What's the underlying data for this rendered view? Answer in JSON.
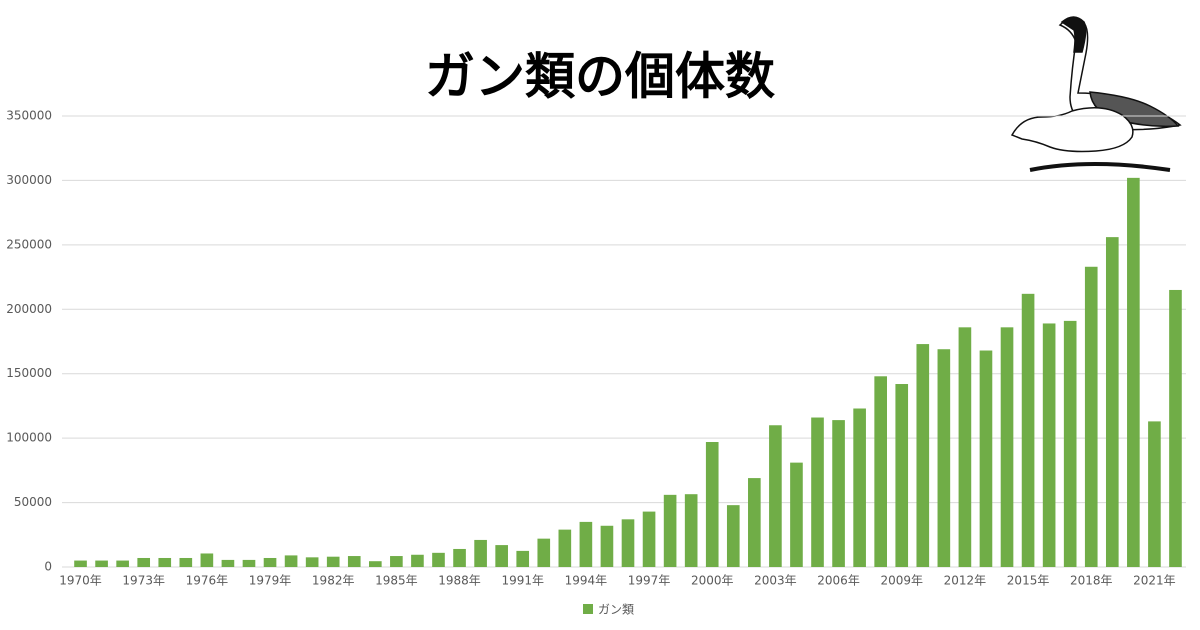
{
  "chart_data": {
    "type": "bar",
    "title": "ガン類の個体数",
    "categories": [
      "1970年",
      null,
      null,
      "1973年",
      null,
      null,
      "1976年",
      null,
      null,
      "1979年",
      null,
      null,
      "1982年",
      null,
      null,
      "1985年",
      null,
      null,
      "1988年",
      null,
      null,
      "1991年",
      null,
      null,
      "1994年",
      null,
      null,
      "1997年",
      null,
      null,
      "2000年",
      null,
      null,
      "2003年",
      null,
      null,
      "2006年",
      null,
      null,
      "2009年",
      null,
      null,
      "2012年",
      null,
      null,
      "2015年",
      null,
      null,
      "2018年",
      null,
      null,
      "2021年",
      null
    ],
    "series": [
      {
        "name": "ガン類",
        "color": "#70ad47",
        "values": [
          5000,
          5000,
          5000,
          7000,
          7000,
          7000,
          10500,
          5500,
          5500,
          7000,
          9000,
          7500,
          8000,
          8500,
          4500,
          8500,
          9500,
          11000,
          14000,
          21000,
          17000,
          12500,
          22000,
          29000,
          35000,
          32000,
          37000,
          43000,
          56000,
          56500,
          97000,
          48000,
          69000,
          110000,
          81000,
          116000,
          114000,
          123000,
          148000,
          142000,
          173000,
          169000,
          186000,
          168000,
          186000,
          212000,
          189000,
          191000,
          233000,
          256000,
          302000,
          113000,
          215000
        ]
      }
    ],
    "ylim": [
      0,
      350000
    ],
    "yticks": [
      0,
      50000,
      100000,
      150000,
      200000,
      250000,
      300000,
      350000
    ],
    "grid": true,
    "legend": "bottom"
  }
}
